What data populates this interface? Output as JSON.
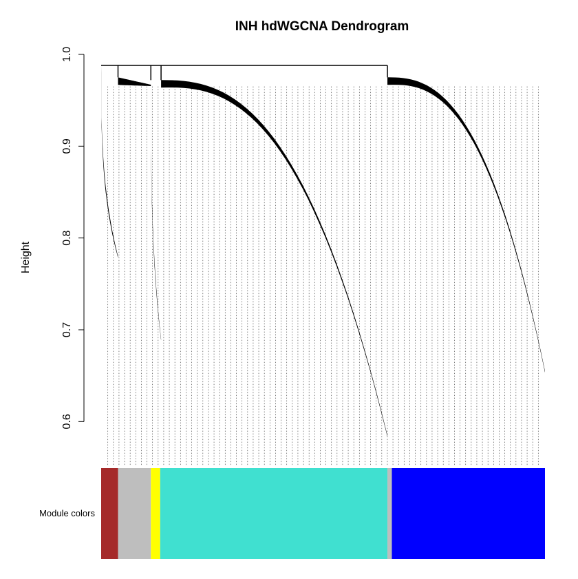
{
  "chart_data": {
    "type": "dendrogram",
    "title": "INH hdWGCNA Dendrogram",
    "ylabel": "Height",
    "xlabel": "",
    "ylim": [
      0.55,
      1.0
    ],
    "y_ticks": [
      0.6,
      0.7,
      0.8,
      0.9,
      1.0
    ],
    "y_tick_labels": [
      "0.6",
      "0.7",
      "0.8",
      "0.9",
      "1.0"
    ],
    "merge_height": 0.988,
    "color_row_label": "Module colors",
    "branches": [
      {
        "module": "brown",
        "start": 0.0,
        "end": 0.038,
        "top": 0.988,
        "bottom": 0.78,
        "curve": "steep"
      },
      {
        "module": "grey",
        "start": 0.038,
        "end": 0.112,
        "top": 0.975,
        "bottom": 0.955,
        "curve": "flat"
      },
      {
        "module": "yellow",
        "start": 0.112,
        "end": 0.135,
        "top": 0.972,
        "bottom": 0.69,
        "curve": "steep"
      },
      {
        "module": "turquoise",
        "start": 0.135,
        "end": 0.645,
        "top": 0.972,
        "bottom": 0.585,
        "curve": "arc"
      },
      {
        "module": "blue",
        "start": 0.645,
        "end": 1.0,
        "top": 0.975,
        "bottom": 0.655,
        "curve": "arc"
      }
    ],
    "module_segments": [
      {
        "color": "#A52A2A",
        "start": 0.0,
        "end": 0.038
      },
      {
        "color": "#BEBEBE",
        "start": 0.038,
        "end": 0.112
      },
      {
        "color": "#FFFF00",
        "start": 0.112,
        "end": 0.133
      },
      {
        "color": "#40E0D0",
        "start": 0.133,
        "end": 0.645
      },
      {
        "color": "#BEBEBE",
        "start": 0.645,
        "end": 0.655
      },
      {
        "color": "#0000FF",
        "start": 0.655,
        "end": 1.0
      }
    ],
    "colors": {
      "brown": "#A52A2A",
      "grey": "#BEBEBE",
      "yellow": "#FFFF00",
      "turquoise": "#40E0D0",
      "blue": "#0000FF"
    }
  }
}
